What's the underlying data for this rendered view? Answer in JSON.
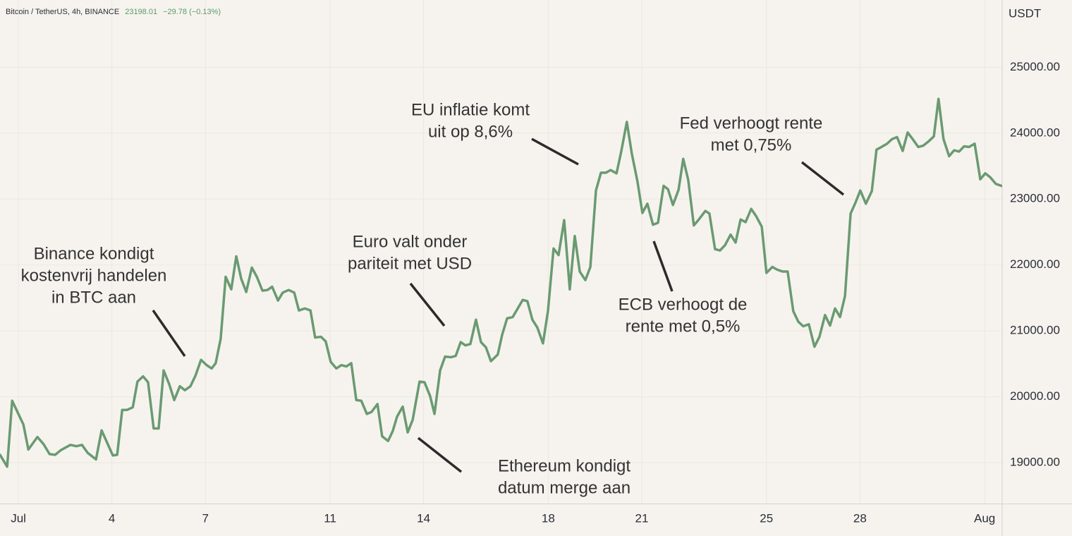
{
  "chart_data": {
    "type": "line",
    "title": "Bitcoin / TetherUS, 4h, BINANCE",
    "last_price": "23198.01",
    "change": "−29.78 (−0.13%)",
    "y_axis_label": "USDT",
    "color": "#6a9a72",
    "grid": true,
    "xlim": [
      0.41,
      32.54
    ],
    "xticks": [
      {
        "value": 1,
        "label": "Jul"
      },
      4,
      7,
      11,
      14,
      18,
      21,
      25,
      28,
      {
        "value": 32,
        "label": "Aug"
      }
    ],
    "ylim": [
      18380,
      26020
    ],
    "yticks": [
      {
        "value": 19000,
        "label": "19000.00"
      },
      {
        "value": 20000,
        "label": "20000.00"
      },
      {
        "value": 21000,
        "label": "21000.00"
      },
      {
        "value": 22000,
        "label": "22000.00"
      },
      {
        "value": 23000,
        "label": "23000.00"
      },
      {
        "value": 24000,
        "label": "24000.00"
      },
      {
        "value": 25000,
        "label": "25000.00"
      }
    ],
    "annotations": [
      {
        "lines": [
          "Binance kondigt",
          "kostenvrij handelen",
          "in BTC aan"
        ]
      },
      {
        "lines": [
          "Euro valt onder",
          "pariteit met USD"
        ]
      },
      {
        "lines": [
          "EU inflatie komt",
          "uit op 8,6%"
        ]
      },
      {
        "lines": [
          "Ethereum kondigt",
          "datum merge aan"
        ]
      },
      {
        "lines": [
          "ECB verhoogt de",
          "rente met 0,5%"
        ]
      },
      {
        "lines": [
          "Fed verhoogt rente",
          "met 0,75%"
        ]
      }
    ],
    "x": [
      0.41,
      0.64,
      0.8,
      0.98,
      1.16,
      1.32,
      1.61,
      1.81,
      2.0,
      2.18,
      2.36,
      2.67,
      2.86,
      3.04,
      3.22,
      3.49,
      3.67,
      3.85,
      4.03,
      4.17,
      4.33,
      4.48,
      4.67,
      4.82,
      5.0,
      5.16,
      5.34,
      5.5,
      5.66,
      5.84,
      6.0,
      6.18,
      6.34,
      6.52,
      6.68,
      6.86,
      7.04,
      7.2,
      7.33,
      7.49,
      7.65,
      7.83,
      7.99,
      8.15,
      8.31,
      8.49,
      8.65,
      8.83,
      8.99,
      9.14,
      9.33,
      9.48,
      9.67,
      9.85,
      10.0,
      10.19,
      10.37,
      10.52,
      10.71,
      10.86,
      11.02,
      11.2,
      11.36,
      11.52,
      11.68,
      11.84,
      12.0,
      12.18,
      12.33,
      12.52,
      12.67,
      12.86,
      13.01,
      13.15,
      13.33,
      13.49,
      13.65,
      13.87,
      14.03,
      14.21,
      14.35,
      14.53,
      14.69,
      14.87,
      15.03,
      15.19,
      15.34,
      15.5,
      15.68,
      15.84,
      16.0,
      16.16,
      16.38,
      16.52,
      16.68,
      16.86,
      17.02,
      17.18,
      17.33,
      17.49,
      17.65,
      17.83,
      17.99,
      18.17,
      18.33,
      18.51,
      18.69,
      18.85,
      19.01,
      19.19,
      19.35,
      19.53,
      19.69,
      19.85,
      20.0,
      20.19,
      20.34,
      20.52,
      20.68,
      20.86,
      21.02,
      21.18,
      21.36,
      21.52,
      21.7,
      21.84,
      22.0,
      22.18,
      22.33,
      22.49,
      22.67,
      22.83,
      23.04,
      23.17,
      23.35,
      23.51,
      23.67,
      23.85,
      24.01,
      24.17,
      24.33,
      24.51,
      24.67,
      24.85,
      25.0,
      25.19,
      25.34,
      25.52,
      25.68,
      25.86,
      26.02,
      26.18,
      26.36,
      26.54,
      26.7,
      26.88,
      27.04,
      27.2,
      27.36,
      27.52,
      27.7,
      27.86,
      28.01,
      28.19,
      28.38,
      28.53,
      28.69,
      28.87,
      29.03,
      29.19,
      29.37,
      29.53,
      29.69,
      29.87,
      30.03,
      30.19,
      30.37,
      30.52,
      30.68,
      30.86,
      31.02,
      31.18,
      31.34,
      31.5,
      31.68,
      31.86,
      32.02,
      32.18,
      32.36,
      32.54
    ],
    "values": [
      19120,
      18940,
      19940,
      19760,
      19580,
      19200,
      19390,
      19280,
      19130,
      19120,
      19190,
      19270,
      19250,
      19270,
      19150,
      19050,
      19490,
      19300,
      19110,
      19120,
      19800,
      19800,
      19840,
      20230,
      20310,
      20220,
      19520,
      19520,
      20400,
      20190,
      19950,
      20160,
      20100,
      20160,
      20320,
      20560,
      20480,
      20430,
      20510,
      20880,
      21820,
      21630,
      22130,
      21790,
      21590,
      21960,
      21820,
      21610,
      21620,
      21670,
      21460,
      21580,
      21620,
      21580,
      21310,
      21340,
      21310,
      20900,
      20910,
      20840,
      20530,
      20430,
      20480,
      20460,
      20510,
      19950,
      19940,
      19740,
      19770,
      19890,
      19400,
      19330,
      19480,
      19700,
      19850,
      19460,
      19650,
      20230,
      20220,
      20010,
      19740,
      20400,
      20610,
      20600,
      20620,
      20830,
      20780,
      20800,
      21170,
      20830,
      20750,
      20540,
      20640,
      20940,
      21190,
      21210,
      21340,
      21470,
      21450,
      21170,
      21050,
      20810,
      21300,
      22250,
      22150,
      22680,
      21630,
      22440,
      21900,
      21770,
      21970,
      23130,
      23400,
      23400,
      23440,
      23390,
      23720,
      24170,
      23690,
      23270,
      22790,
      22930,
      22610,
      22640,
      23200,
      23150,
      22910,
      23140,
      23610,
      23290,
      22600,
      22690,
      22820,
      22780,
      22240,
      22220,
      22300,
      22460,
      22340,
      22690,
      22650,
      22850,
      22740,
      22580,
      21880,
      21970,
      21930,
      21900,
      21900,
      21300,
      21140,
      21070,
      21100,
      20760,
      20910,
      21240,
      21080,
      21340,
      21210,
      21530,
      22780,
      22950,
      23130,
      22930,
      23120,
      23750,
      23790,
      23840,
      23910,
      23940,
      23730,
      24010,
      23910,
      23790,
      23810,
      23870,
      23950,
      24520,
      23910,
      23650,
      23740,
      23720,
      23800,
      23790,
      23840,
      23300,
      23390,
      23330,
      23230,
      23200
    ]
  }
}
